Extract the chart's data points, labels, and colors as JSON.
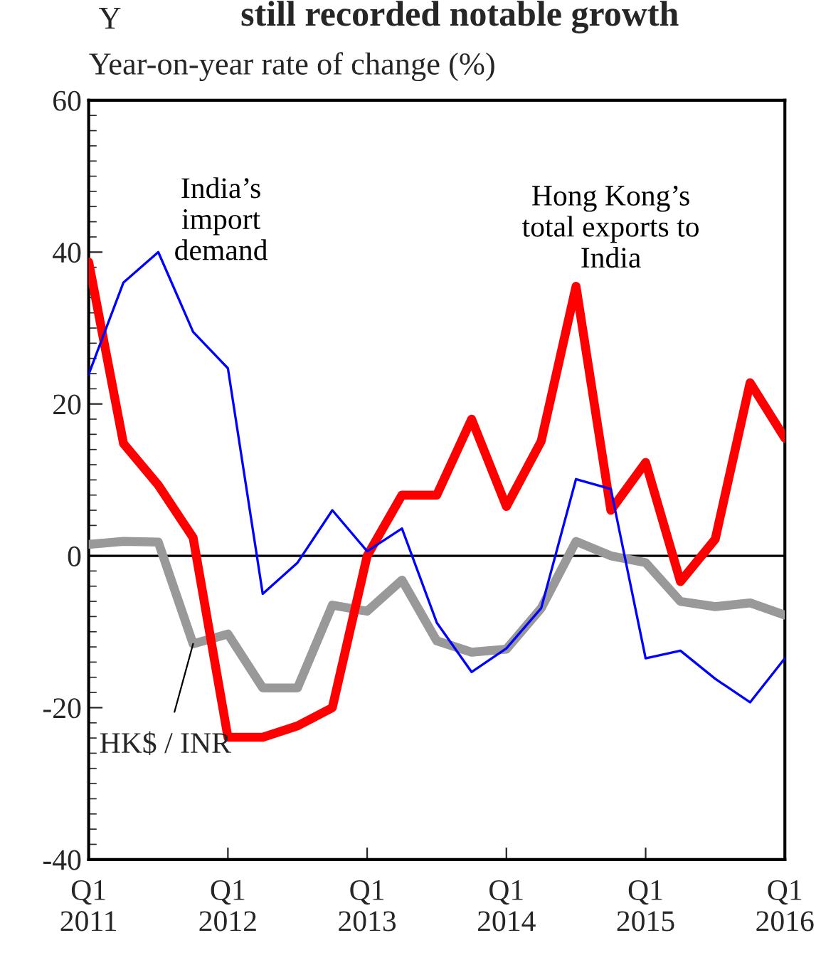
{
  "chart_data": {
    "type": "line",
    "title": "still recorded notable growth",
    "ylabel": "Year-on-year rate of change (%)",
    "annotations": [
      "Y"
    ],
    "categories": [
      "Q1\n2011",
      null,
      null,
      null,
      "Q1\n2012",
      null,
      null,
      null,
      "Q1\n2013",
      null,
      null,
      null,
      "Q1\n2014",
      null,
      null,
      null,
      "Q1\n2015",
      null,
      null,
      null,
      "Q1\n2016"
    ],
    "series": [
      {
        "name": "India’s\nimport\ndemand",
        "color": "#0000ff",
        "values": [
          23.9,
          36,
          40,
          29.5,
          24.7,
          -5,
          -0.9,
          6,
          0.6,
          3.6,
          -8.8,
          -15.3,
          -12.2,
          -6.9,
          10.1,
          8.8,
          -13.5,
          -12.5,
          -16.2,
          -19.3,
          -13.5
        ]
      },
      {
        "name": "HK$ / INR",
        "color": "#999999",
        "values": [
          1.5,
          1.9,
          1.8,
          -11.6,
          -10.3,
          -17.4,
          -17.4,
          -6.5,
          -7.3,
          -3.2,
          -11.2,
          -12.7,
          -12.3,
          -6.9,
          1.9,
          0,
          -0.9,
          -6,
          -6.7,
          -6.2,
          -7.8
        ]
      },
      {
        "name": "Hong Kong’s\ntotal exports to\nIndia",
        "color": "#ff0000",
        "values": [
          38.7,
          14.8,
          9.3,
          2.4,
          -23.9,
          -23.9,
          -22.4,
          -20,
          0,
          8,
          8,
          18,
          6.5,
          15.1,
          35.5,
          6,
          12.3,
          -3.4,
          2.2,
          22.8,
          15.5
        ]
      }
    ],
    "ylim": [
      -40,
      60
    ],
    "yticks": [
      -40,
      -20,
      0,
      20,
      40,
      60
    ],
    "ref_lines": [
      {
        "axis": "y",
        "value": 0,
        "color": "#000000"
      }
    ],
    "grid": false,
    "legend": false,
    "marker": "none",
    "line_style": "solid"
  }
}
